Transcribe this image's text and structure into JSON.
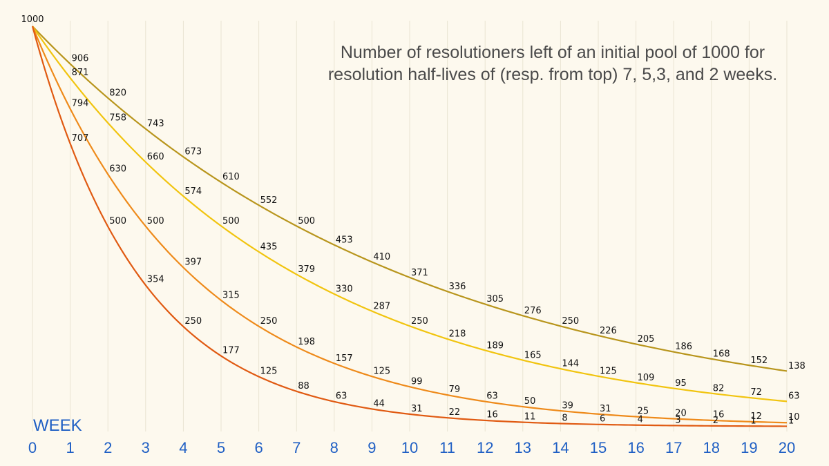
{
  "chart_data": {
    "type": "line",
    "title": "Number of resolutioners left of an initial pool of 1000 for resolution half-lives of (resp. from top) 7, 5,3, and 2 weeks.",
    "xlabel": "WEEK",
    "ylabel": "",
    "grid": true,
    "xlim": [
      0,
      20
    ],
    "ylim": [
      0,
      1000
    ],
    "x": [
      0,
      1,
      2,
      3,
      4,
      5,
      6,
      7,
      8,
      9,
      10,
      11,
      12,
      13,
      14,
      15,
      16,
      17,
      18,
      19,
      20
    ],
    "x_tick_labels": [
      "0",
      "1",
      "2",
      "3",
      "4",
      "5",
      "6",
      "7",
      "8",
      "9",
      "10",
      "11",
      "12",
      "13",
      "14",
      "15",
      "16",
      "17",
      "18",
      "19",
      "20"
    ],
    "initial_label": "1000",
    "series": [
      {
        "name": "half-life 7 weeks",
        "color": "#b8951c",
        "values": [
          1000,
          906,
          820,
          743,
          673,
          610,
          552,
          500,
          453,
          410,
          371,
          336,
          305,
          276,
          250,
          226,
          205,
          186,
          168,
          152,
          138
        ],
        "labels": [
          "",
          "906",
          "820",
          "743",
          "673",
          "610",
          "552",
          "500",
          "453",
          "410",
          "371",
          "336",
          "305",
          "276",
          "250",
          "226",
          "205",
          "186",
          "168",
          "152",
          "138"
        ]
      },
      {
        "name": "half-life 5 weeks",
        "color": "#f1c40f",
        "values": [
          1000,
          871,
          758,
          660,
          574,
          500,
          435,
          379,
          330,
          287,
          250,
          218,
          189,
          165,
          144,
          125,
          109,
          95,
          82,
          72,
          63
        ],
        "labels": [
          "",
          "871",
          "758",
          "660",
          "574",
          "500",
          "435",
          "379",
          "330",
          "287",
          "250",
          "218",
          "189",
          "165",
          "144",
          "125",
          "109",
          "95",
          "82",
          "72",
          "63"
        ]
      },
      {
        "name": "half-life 3 weeks",
        "color": "#ee8a1a",
        "values": [
          1000,
          794,
          630,
          500,
          397,
          315,
          250,
          198,
          157,
          125,
          99,
          79,
          63,
          50,
          39,
          31,
          25,
          20,
          16,
          12,
          10
        ],
        "labels": [
          "",
          "794",
          "630",
          "500",
          "397",
          "315",
          "250",
          "198",
          "157",
          "125",
          "99",
          "79",
          "63",
          "50",
          "39",
          "31",
          "25",
          "20",
          "16",
          "12",
          "10"
        ]
      },
      {
        "name": "half-life 2 weeks",
        "color": "#e05a12",
        "values": [
          1000,
          707,
          500,
          354,
          250,
          177,
          125,
          88,
          63,
          44,
          31,
          22,
          16,
          11,
          8,
          6,
          4,
          3,
          2,
          1,
          1
        ],
        "labels": [
          "",
          "707",
          "500",
          "354",
          "250",
          "177",
          "125",
          "88",
          "63",
          "44",
          "31",
          "22",
          "16",
          "11",
          "8",
          "6",
          "4",
          "3",
          "2",
          "1",
          "1"
        ]
      }
    ]
  }
}
